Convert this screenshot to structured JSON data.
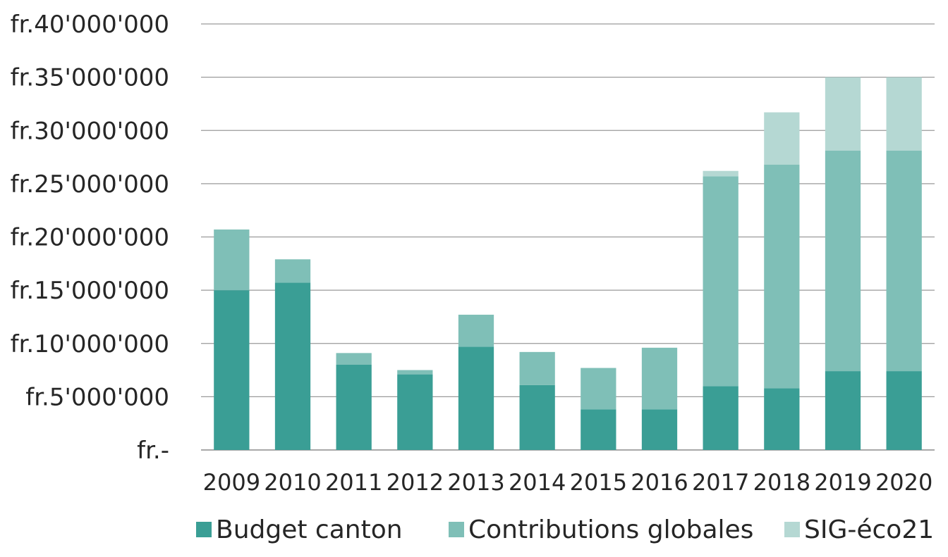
{
  "chart_data": {
    "type": "bar",
    "stacked": true,
    "categories": [
      "2009",
      "2010",
      "2011",
      "2012",
      "2013",
      "2014",
      "2015",
      "2016",
      "2017",
      "2018",
      "2019",
      "2020"
    ],
    "series": [
      {
        "name": "Budget canton",
        "color": "#3a9e95",
        "values": [
          15000000,
          15700000,
          8000000,
          7100000,
          9700000,
          6100000,
          3800000,
          3800000,
          6000000,
          5800000,
          7400000,
          7400000
        ]
      },
      {
        "name": "Contributions globales",
        "color": "#7fbfb7",
        "values": [
          5700000,
          2200000,
          1100000,
          400000,
          3000000,
          3100000,
          3900000,
          5800000,
          19700000,
          21000000,
          20700000,
          20700000
        ]
      },
      {
        "name": "SIG-éco21",
        "color": "#b5d8d3",
        "values": [
          0,
          0,
          0,
          0,
          0,
          0,
          0,
          0,
          500000,
          4900000,
          6900000,
          6900000
        ]
      }
    ],
    "ylim": [
      0,
      40000000
    ],
    "yticks": [
      0,
      5000000,
      10000000,
      15000000,
      20000000,
      25000000,
      30000000,
      35000000,
      40000000
    ],
    "ytick_labels": [
      "fr.-",
      "fr.5'000'000",
      "fr.10'000'000",
      "fr.15'000'000",
      "fr.20'000'000",
      "fr.25'000'000",
      "fr.30'000'000",
      "fr.35'000'000",
      "fr.40'000'000"
    ],
    "grid": true,
    "legend_position": "bottom",
    "title": "",
    "xlabel": "",
    "ylabel": ""
  }
}
